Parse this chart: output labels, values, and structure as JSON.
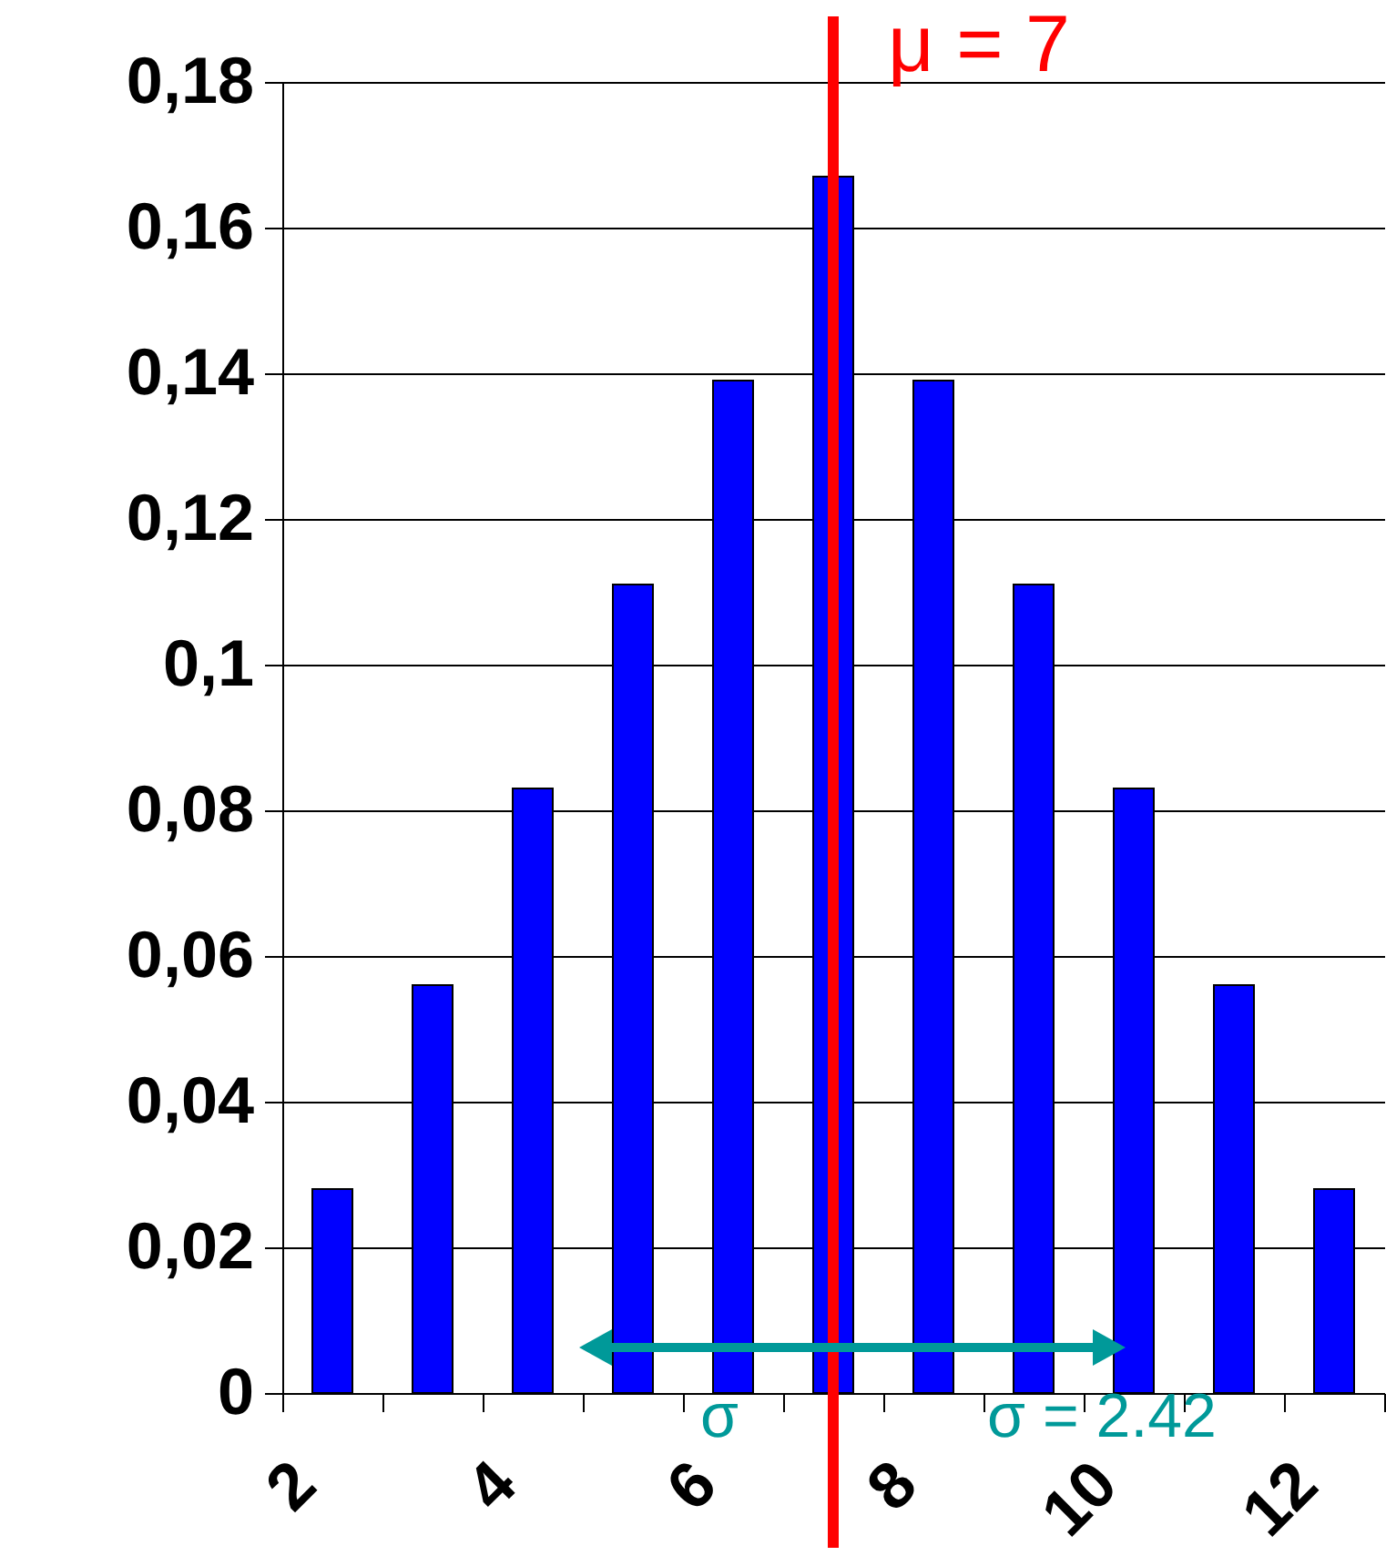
{
  "chart_data": {
    "type": "bar",
    "x": [
      2,
      3,
      4,
      5,
      6,
      7,
      8,
      9,
      10,
      11,
      12
    ],
    "values": [
      0.028,
      0.056,
      0.083,
      0.111,
      0.139,
      0.167,
      0.139,
      0.111,
      0.083,
      0.056,
      0.028
    ],
    "color": "#0000ff",
    "xlim": [
      1.5,
      12.5
    ],
    "xticks": [
      {
        "value": 1.5,
        "label": "2"
      },
      {
        "value": 2.5,
        "label": null
      },
      {
        "value": 3.5,
        "label": "4"
      },
      {
        "value": 4.5,
        "label": null
      },
      {
        "value": 5.5,
        "label": "6"
      },
      {
        "value": 6.5,
        "label": null
      },
      {
        "value": 7.5,
        "label": "8"
      },
      {
        "value": 8.5,
        "label": null
      },
      {
        "value": 9.5,
        "label": "10"
      },
      {
        "value": 10.5,
        "label": null
      },
      {
        "value": 11.5,
        "label": "12"
      },
      {
        "value": 12.5,
        "label": null
      }
    ],
    "ylim": [
      0,
      0.18
    ],
    "yticks": [
      0,
      {
        "value": 0.02,
        "label": "0,02"
      },
      {
        "value": 0.04,
        "label": "0,04"
      },
      {
        "value": 0.06,
        "label": "0,06"
      },
      {
        "value": 0.08,
        "label": "0,08"
      },
      {
        "value": 0.1,
        "label": "0,1"
      },
      {
        "value": 0.12,
        "label": "0,12"
      },
      {
        "value": 0.14,
        "label": "0,14"
      },
      {
        "value": 0.16,
        "label": "0,16"
      },
      {
        "value": 0.18,
        "label": "0,18"
      }
    ],
    "grid": "y",
    "ref_lines": [
      {
        "axis": "x",
        "value": 7,
        "label": "μ = 7",
        "color": "#ff0000"
      }
    ],
    "annotations": [
      "σ",
      "σ = 2.42"
    ]
  }
}
